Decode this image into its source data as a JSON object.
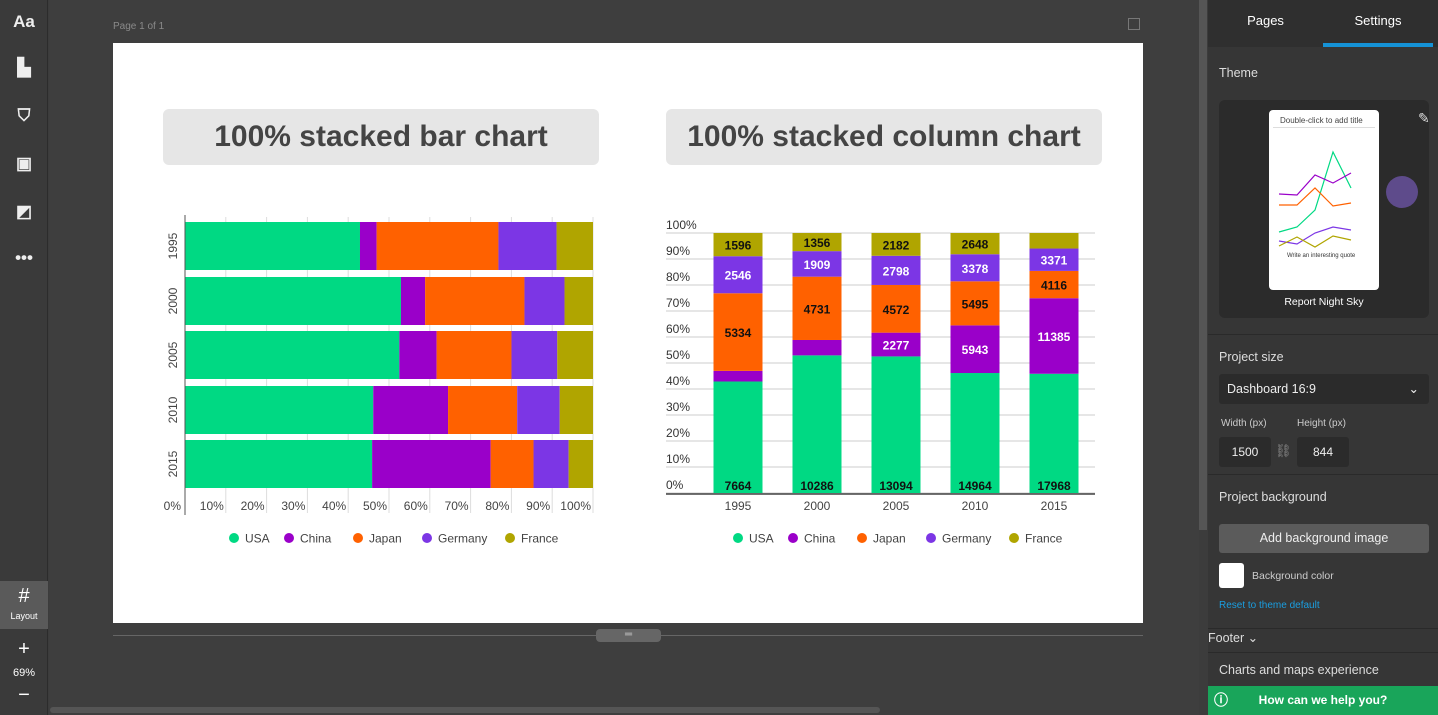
{
  "leftbar": {
    "items": [
      "text-tool",
      "chart-tool",
      "map-tool",
      "image-tool",
      "shapes-tool",
      "more-tool"
    ],
    "layout_label": "Layout",
    "zoom": "69%"
  },
  "canvas": {
    "page_label": "Page 1 of 1"
  },
  "colors": {
    "USA": "#00d983",
    "China": "#9a00c9",
    "Japan": "#ff6100",
    "Germany": "#7c36e5",
    "France": "#b0a500"
  },
  "chart_data": [
    {
      "type": "bar",
      "stacking": "percent",
      "title": "100% stacked bar chart",
      "categories": [
        "1995",
        "2000",
        "2005",
        "2010",
        "2015"
      ],
      "series": [
        {
          "name": "USA",
          "values": [
            7664,
            10286,
            13094,
            14964,
            17968
          ]
        },
        {
          "name": "China",
          "values": [
            730,
            1150,
            2277,
            5943,
            11385
          ]
        },
        {
          "name": "Japan",
          "values": [
            5334,
            4731,
            4572,
            5495,
            4116
          ]
        },
        {
          "name": "Germany",
          "values": [
            2546,
            1909,
            2798,
            3378,
            3371
          ]
        },
        {
          "name": "France",
          "values": [
            1596,
            1356,
            2182,
            2648,
            2340
          ]
        }
      ],
      "ticks": [
        "0%",
        "10%",
        "20%",
        "30%",
        "40%",
        "50%",
        "60%",
        "70%",
        "80%",
        "90%",
        "100%"
      ],
      "legend": "bottom"
    },
    {
      "type": "bar",
      "stacking": "percent",
      "orientation": "vertical",
      "title": "100% stacked column chart",
      "categories": [
        "1995",
        "2000",
        "2005",
        "2010",
        "2015"
      ],
      "series": [
        {
          "name": "USA",
          "values": [
            7664,
            10286,
            13094,
            14964,
            17968
          ],
          "labels": [
            "7664",
            "10286",
            "13094",
            "14964",
            "17968"
          ]
        },
        {
          "name": "China",
          "values": [
            730,
            1150,
            2277,
            5943,
            11385
          ],
          "labels": [
            "",
            "",
            "2277",
            "5943",
            "11385"
          ]
        },
        {
          "name": "Japan",
          "values": [
            5334,
            4731,
            4572,
            5495,
            4116
          ],
          "labels": [
            "5334",
            "4731",
            "4572",
            "5495",
            "4116"
          ]
        },
        {
          "name": "Germany",
          "values": [
            2546,
            1909,
            2798,
            3378,
            3371
          ],
          "labels": [
            "2546",
            "1909",
            "2798",
            "3378",
            "3371"
          ]
        },
        {
          "name": "France",
          "values": [
            1596,
            1356,
            2182,
            2648,
            2340
          ],
          "labels": [
            "1596",
            "1356",
            "2182",
            "2648",
            ""
          ]
        }
      ],
      "ticks": [
        "0%",
        "10%",
        "20%",
        "30%",
        "40%",
        "50%",
        "60%",
        "70%",
        "80%",
        "90%",
        "100%"
      ],
      "legend": "bottom"
    }
  ],
  "panel": {
    "tabs": [
      "Pages",
      "Settings"
    ],
    "theme_label": "Theme",
    "theme_name": "Report Night Sky",
    "thumb_title": "Double-click to add title",
    "thumb_quote": "Write an interesting quote",
    "project_size_label": "Project size",
    "project_size": "Dashboard 16:9",
    "width_label": "Width (px)",
    "height_label": "Height (px)",
    "width": "1500",
    "height": "844",
    "bg_label": "Project background",
    "add_bg": "Add background image",
    "bg_color": "Background color",
    "reset": "Reset to theme default",
    "footer": "Footer",
    "charts_exp": "Charts and maps experience",
    "help": "How can we help you?"
  }
}
